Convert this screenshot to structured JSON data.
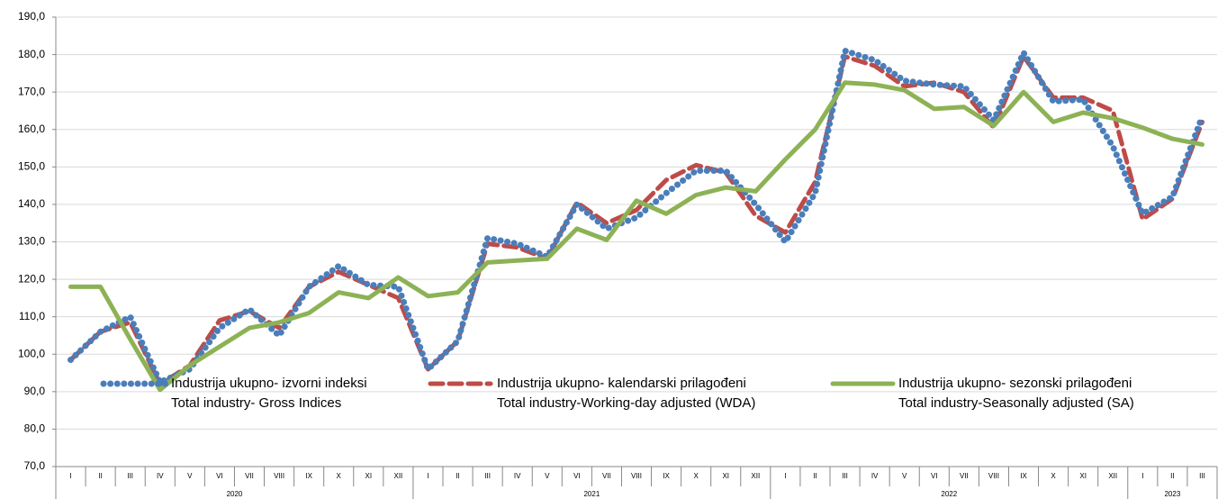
{
  "chart_data": {
    "type": "line",
    "groups": [
      {
        "label": "2020",
        "categories": [
          "I",
          "II",
          "III",
          "IV",
          "V",
          "VI",
          "VII",
          "VIII",
          "IX",
          "X",
          "XI",
          "XII"
        ]
      },
      {
        "label": "2021",
        "categories": [
          "I",
          "II",
          "III",
          "IV",
          "V",
          "VI",
          "VII",
          "VIII",
          "IX",
          "X",
          "XI",
          "XII"
        ]
      },
      {
        "label": "2022",
        "categories": [
          "I",
          "II",
          "III",
          "IV",
          "V",
          "VI",
          "VII",
          "VIII",
          "IX",
          "X",
          "XI",
          "XII"
        ]
      },
      {
        "label": "2023",
        "categories": [
          "I",
          "II",
          "III"
        ]
      }
    ],
    "series": [
      {
        "name": "Industrija ukupno- izvorni indeksi\nTotal industry- Gross Indices",
        "color": "#4a7ebb",
        "style": "dotted",
        "values": [
          98.5,
          106,
          110,
          92.5,
          96,
          107,
          112,
          105,
          118,
          123.5,
          118.5,
          118,
          96,
          103.5,
          131,
          129.5,
          126,
          140,
          133.5,
          136.5,
          143,
          149,
          149,
          140,
          130,
          143,
          181,
          178.5,
          173,
          172,
          171.5,
          162.5,
          180.5,
          167.5,
          168,
          155.5,
          137.5,
          142,
          163.5
        ]
      },
      {
        "name": "Industrija ukupno- kalendarski prilagođeni\nTotal industry-Working-day adjusted (WDA)",
        "color": "#be4b48",
        "style": "dashed",
        "values": [
          98.5,
          106,
          108.5,
          92,
          97,
          109,
          111.5,
          107,
          118,
          122,
          118.5,
          115,
          96,
          103.5,
          129.5,
          128.5,
          125.5,
          140.5,
          135,
          138.5,
          146.5,
          150.5,
          148.5,
          137,
          132.5,
          146,
          179.5,
          177,
          171.5,
          172.5,
          170,
          160.5,
          179.5,
          168.5,
          168.5,
          165,
          136,
          141.5,
          162
        ]
      },
      {
        "name": "Industrija ukupno- sezonski prilagođeni\nTotal industry-Seasonally adjusted (SA)",
        "color": "#8db255",
        "style": "solid",
        "values": [
          118,
          118,
          104,
          90.5,
          97,
          102,
          107,
          108.5,
          111,
          116.5,
          115,
          120.5,
          115.5,
          116.5,
          124.5,
          125,
          125.5,
          133.5,
          130.5,
          141,
          137.5,
          142.5,
          144.5,
          143.5,
          152,
          160,
          172.5,
          172,
          170.5,
          165.5,
          166,
          161,
          170,
          162,
          164.5,
          163,
          160.5,
          157.5,
          156
        ]
      }
    ],
    "ylim": [
      70,
      190
    ],
    "yticks": [
      {
        "value": 70,
        "label": "70,0"
      },
      {
        "value": 80,
        "label": "80,0"
      },
      {
        "value": 90,
        "label": "90,0"
      },
      {
        "value": 100,
        "label": "100,0"
      },
      {
        "value": 110,
        "label": "110,0"
      },
      {
        "value": 120,
        "label": "120,0"
      },
      {
        "value": 130,
        "label": "130,0"
      },
      {
        "value": 140,
        "label": "140,0"
      },
      {
        "value": 150,
        "label": "150,0"
      },
      {
        "value": 160,
        "label": "160,0"
      },
      {
        "value": 170,
        "label": "170,0"
      },
      {
        "value": 180,
        "label": "180,0"
      },
      {
        "value": 190,
        "label": "190,0"
      }
    ],
    "grid": true
  }
}
